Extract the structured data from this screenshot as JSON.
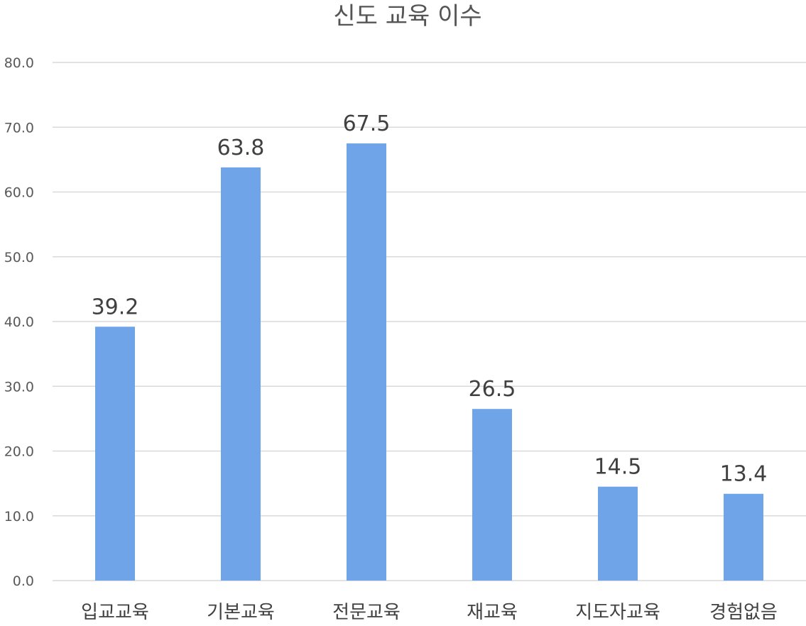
{
  "chart_data": {
    "type": "bar",
    "title": "신도 교육 이수",
    "xlabel": "",
    "ylabel": "",
    "categories": [
      "입교교육",
      "기본교육",
      "전문교육",
      "재교육",
      "지도자교육",
      "경험없음"
    ],
    "values": [
      39.2,
      63.8,
      67.5,
      26.5,
      14.5,
      13.4
    ],
    "data_labels": [
      "39.2",
      "63.8",
      "67.5",
      "26.5",
      "14.5",
      "13.4"
    ],
    "ylim": [
      0,
      80
    ],
    "yticks": [
      0,
      10,
      20,
      30,
      40,
      50,
      60,
      70,
      80
    ],
    "ytick_labels": [
      "0.0",
      "10.0",
      "20.0",
      "30.0",
      "40.0",
      "50.0",
      "60.0",
      "70.0",
      "80.0"
    ],
    "grid": true,
    "legend": "none",
    "bar_color": "#6fa5e8"
  }
}
